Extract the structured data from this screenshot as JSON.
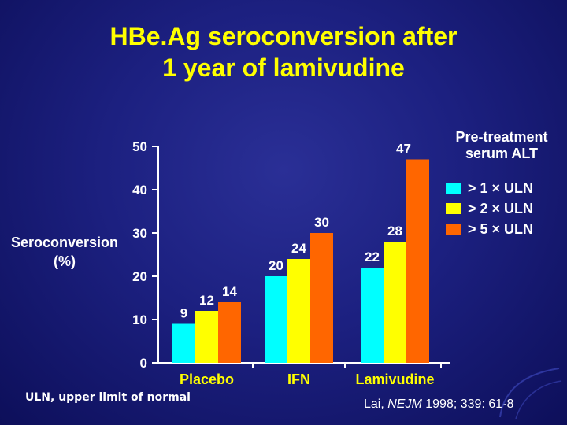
{
  "title": {
    "line1": "HBe.Ag seroconversion after",
    "line2": "1 year of lamivudine"
  },
  "colors": {
    "title": "#ffff00",
    "text": "#ffffff",
    "series_1": "#00ffff",
    "series_2": "#ffff00",
    "series_3": "#ff6600"
  },
  "legend": {
    "title_line1": "Pre-treatment",
    "title_line2": "serum ALT"
  },
  "footnote": "ULN, upper limit of normal",
  "citation": {
    "author": "Lai, ",
    "journal": "NEJM",
    "rest": " 1998; 339: 61-8"
  },
  "chart_data": {
    "type": "bar",
    "title": "HBe.Ag seroconversion after 1 year of lamivudine",
    "ylabel_line1": "Seroconversion",
    "ylabel_line2": "(%)",
    "ylim": [
      0,
      50
    ],
    "yticks": [
      "0",
      "10",
      "20",
      "30",
      "40",
      "50"
    ],
    "categories": [
      "Placebo",
      "IFN",
      "Lamivudine"
    ],
    "series": [
      {
        "name": "> 1 × ULN",
        "color": "#00ffff",
        "values": [
          9,
          20,
          22
        ],
        "labels": [
          "9",
          "20",
          "22"
        ]
      },
      {
        "name": "> 2 × ULN",
        "color": "#ffff00",
        "values": [
          12,
          24,
          28
        ],
        "labels": [
          "12",
          "24",
          "28"
        ]
      },
      {
        "name": "> 5 × ULN",
        "color": "#ff6600",
        "values": [
          14,
          30,
          47
        ],
        "labels": [
          "14",
          "30",
          "47"
        ]
      }
    ],
    "category_label_color": "#ffff00",
    "legend_position": "right",
    "grid": false
  }
}
